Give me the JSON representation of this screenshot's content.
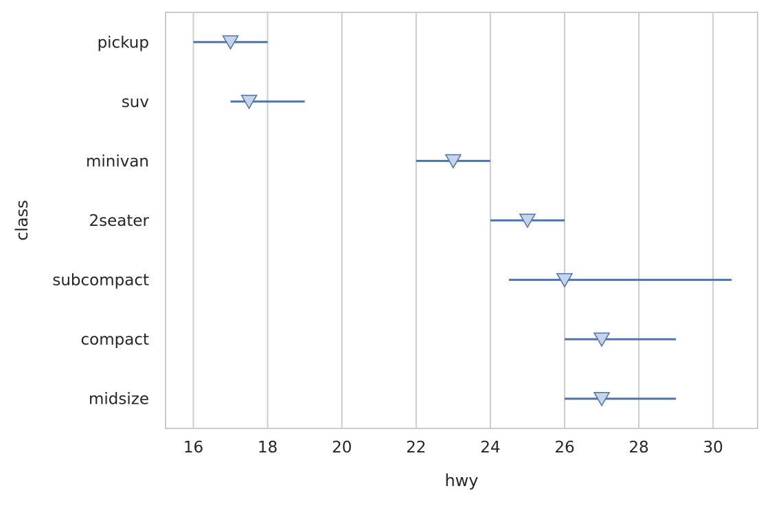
{
  "chart_data": {
    "type": "scatter",
    "orientation": "horizontal",
    "title": "",
    "xlabel": "hwy",
    "ylabel": "class",
    "xlim": [
      15.25,
      31.2
    ],
    "xticks": [
      "16",
      "18",
      "20",
      "22",
      "24",
      "26",
      "28",
      "30"
    ],
    "grid": "vertical",
    "categories": [
      "pickup",
      "suv",
      "minivan",
      "2seater",
      "subcompact",
      "compact",
      "midsize"
    ],
    "series": [
      {
        "marker": "triangle-down",
        "values": [
          17,
          17.5,
          23,
          25,
          26,
          27,
          27
        ],
        "ci": [
          [
            16,
            18
          ],
          [
            17,
            19
          ],
          [
            22,
            24
          ],
          [
            24,
            26
          ],
          [
            24.5,
            30.5
          ],
          [
            26,
            29
          ],
          [
            26,
            29
          ]
        ]
      }
    ],
    "colors": {
      "line": "#4c72b0",
      "marker_fill": "#c6d3e8",
      "grid": "#cccccc",
      "spine": "#cccccc",
      "text": "#262626"
    }
  }
}
